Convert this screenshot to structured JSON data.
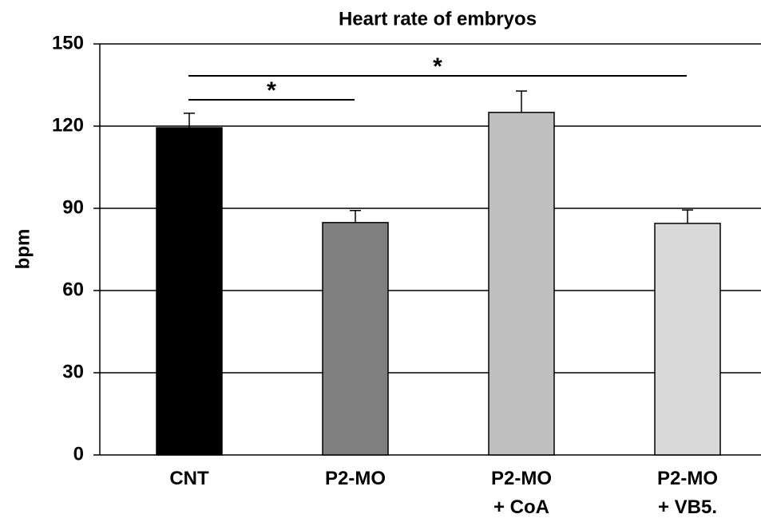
{
  "chart_data": {
    "type": "bar",
    "title": "Heart rate of embryos",
    "y_label": "bpm",
    "categories": [
      "CNT",
      "P2-MO",
      "P2-MO\n+ CoA",
      "P2-MO\n+ VB5."
    ],
    "values": [
      119.4,
      84.8,
      125,
      84.5
    ],
    "errors": [
      5.3,
      4.4,
      7.8,
      4.9
    ],
    "colors": [
      "#000000",
      "#808080",
      "#bfbfbf",
      "#d9d9d9"
    ],
    "ylim": [
      0,
      150
    ],
    "yticks": [
      0,
      30,
      60,
      90,
      120,
      150
    ],
    "grid": true,
    "annotations": [
      {
        "text": "*",
        "from": 0,
        "to": 1
      },
      {
        "text": "*",
        "from": 0,
        "to": 3
      }
    ]
  }
}
